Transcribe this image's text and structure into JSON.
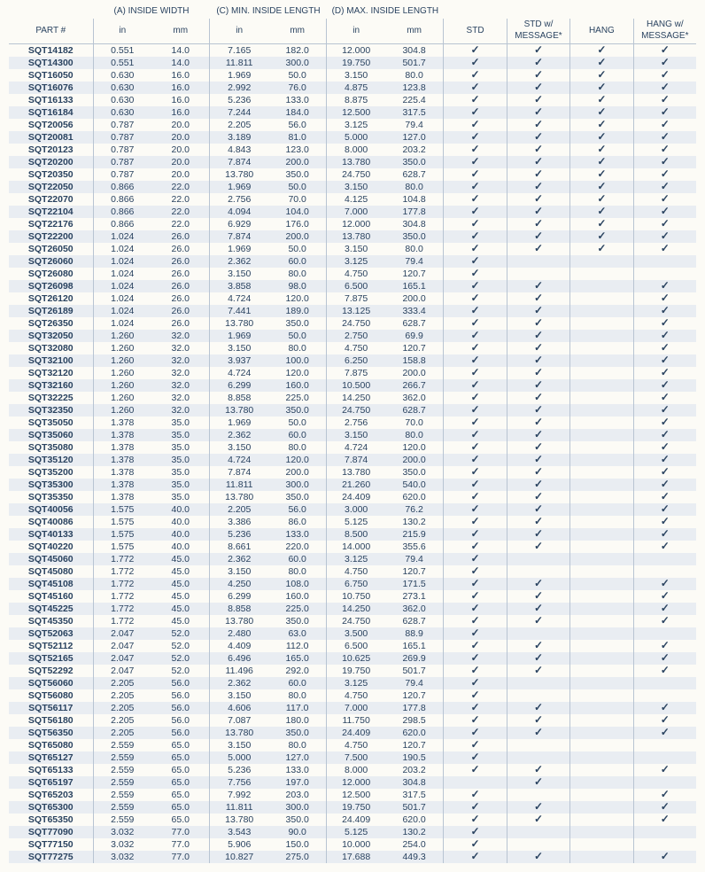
{
  "headers": {
    "groupA": "(A) INSIDE WIDTH",
    "groupC": "(C) MIN. INSIDE LENGTH",
    "groupD": "(D) MAX. INSIDE LENGTH",
    "part": "PART #",
    "in": "in",
    "mm": "mm",
    "std": "STD",
    "stdMsg": "STD w/ MESSAGE*",
    "hang": "HANG",
    "hangMsg": "HANG w/ MESSAGE*"
  },
  "tick": "✓",
  "rows": [
    {
      "p": "SQT14182",
      "ai": "0.551",
      "am": "14.0",
      "ci": "7.165",
      "cm": "182.0",
      "di": "12.000",
      "dm": "304.8",
      "s": 1,
      "sm": 1,
      "h": 1,
      "hm": 1
    },
    {
      "p": "SQT14300",
      "ai": "0.551",
      "am": "14.0",
      "ci": "11.811",
      "cm": "300.0",
      "di": "19.750",
      "dm": "501.7",
      "s": 1,
      "sm": 1,
      "h": 1,
      "hm": 1
    },
    {
      "p": "SQT16050",
      "ai": "0.630",
      "am": "16.0",
      "ci": "1.969",
      "cm": "50.0",
      "di": "3.150",
      "dm": "80.0",
      "s": 1,
      "sm": 1,
      "h": 1,
      "hm": 1
    },
    {
      "p": "SQT16076",
      "ai": "0.630",
      "am": "16.0",
      "ci": "2.992",
      "cm": "76.0",
      "di": "4.875",
      "dm": "123.8",
      "s": 1,
      "sm": 1,
      "h": 1,
      "hm": 1
    },
    {
      "p": "SQT16133",
      "ai": "0.630",
      "am": "16.0",
      "ci": "5.236",
      "cm": "133.0",
      "di": "8.875",
      "dm": "225.4",
      "s": 1,
      "sm": 1,
      "h": 1,
      "hm": 1
    },
    {
      "p": "SQT16184",
      "ai": "0.630",
      "am": "16.0",
      "ci": "7.244",
      "cm": "184.0",
      "di": "12.500",
      "dm": "317.5",
      "s": 1,
      "sm": 1,
      "h": 1,
      "hm": 1
    },
    {
      "p": "SQT20056",
      "ai": "0.787",
      "am": "20.0",
      "ci": "2.205",
      "cm": "56.0",
      "di": "3.125",
      "dm": "79.4",
      "s": 1,
      "sm": 1,
      "h": 1,
      "hm": 1
    },
    {
      "p": "SQT20081",
      "ai": "0.787",
      "am": "20.0",
      "ci": "3.189",
      "cm": "81.0",
      "di": "5.000",
      "dm": "127.0",
      "s": 1,
      "sm": 1,
      "h": 1,
      "hm": 1
    },
    {
      "p": "SQT20123",
      "ai": "0.787",
      "am": "20.0",
      "ci": "4.843",
      "cm": "123.0",
      "di": "8.000",
      "dm": "203.2",
      "s": 1,
      "sm": 1,
      "h": 1,
      "hm": 1
    },
    {
      "p": "SQT20200",
      "ai": "0.787",
      "am": "20.0",
      "ci": "7.874",
      "cm": "200.0",
      "di": "13.780",
      "dm": "350.0",
      "s": 1,
      "sm": 1,
      "h": 1,
      "hm": 1
    },
    {
      "p": "SQT20350",
      "ai": "0.787",
      "am": "20.0",
      "ci": "13.780",
      "cm": "350.0",
      "di": "24.750",
      "dm": "628.7",
      "s": 1,
      "sm": 1,
      "h": 1,
      "hm": 1
    },
    {
      "p": "SQT22050",
      "ai": "0.866",
      "am": "22.0",
      "ci": "1.969",
      "cm": "50.0",
      "di": "3.150",
      "dm": "80.0",
      "s": 1,
      "sm": 1,
      "h": 1,
      "hm": 1
    },
    {
      "p": "SQT22070",
      "ai": "0.866",
      "am": "22.0",
      "ci": "2.756",
      "cm": "70.0",
      "di": "4.125",
      "dm": "104.8",
      "s": 1,
      "sm": 1,
      "h": 1,
      "hm": 1
    },
    {
      "p": "SQT22104",
      "ai": "0.866",
      "am": "22.0",
      "ci": "4.094",
      "cm": "104.0",
      "di": "7.000",
      "dm": "177.8",
      "s": 1,
      "sm": 1,
      "h": 1,
      "hm": 1
    },
    {
      "p": "SQT22176",
      "ai": "0.866",
      "am": "22.0",
      "ci": "6.929",
      "cm": "176.0",
      "di": "12.000",
      "dm": "304.8",
      "s": 1,
      "sm": 1,
      "h": 1,
      "hm": 1
    },
    {
      "p": "SQT22200",
      "ai": "1.024",
      "am": "26.0",
      "ci": "7.874",
      "cm": "200.0",
      "di": "13.780",
      "dm": "350.0",
      "s": 1,
      "sm": 1,
      "h": 1,
      "hm": 1
    },
    {
      "p": "SQT26050",
      "ai": "1.024",
      "am": "26.0",
      "ci": "1.969",
      "cm": "50.0",
      "di": "3.150",
      "dm": "80.0",
      "s": 1,
      "sm": 1,
      "h": 1,
      "hm": 1
    },
    {
      "p": "SQT26060",
      "ai": "1.024",
      "am": "26.0",
      "ci": "2.362",
      "cm": "60.0",
      "di": "3.125",
      "dm": "79.4",
      "s": 1,
      "sm": 0,
      "h": 0,
      "hm": 0
    },
    {
      "p": "SQT26080",
      "ai": "1.024",
      "am": "26.0",
      "ci": "3.150",
      "cm": "80.0",
      "di": "4.750",
      "dm": "120.7",
      "s": 1,
      "sm": 0,
      "h": 0,
      "hm": 0
    },
    {
      "p": "SQT26098",
      "ai": "1.024",
      "am": "26.0",
      "ci": "3.858",
      "cm": "98.0",
      "di": "6.500",
      "dm": "165.1",
      "s": 1,
      "sm": 1,
      "h": 0,
      "hm": 1
    },
    {
      "p": "SQT26120",
      "ai": "1.024",
      "am": "26.0",
      "ci": "4.724",
      "cm": "120.0",
      "di": "7.875",
      "dm": "200.0",
      "s": 1,
      "sm": 1,
      "h": 0,
      "hm": 1
    },
    {
      "p": "SQT26189",
      "ai": "1.024",
      "am": "26.0",
      "ci": "7.441",
      "cm": "189.0",
      "di": "13.125",
      "dm": "333.4",
      "s": 1,
      "sm": 1,
      "h": 0,
      "hm": 1
    },
    {
      "p": "SQT26350",
      "ai": "1.024",
      "am": "26.0",
      "ci": "13.780",
      "cm": "350.0",
      "di": "24.750",
      "dm": "628.7",
      "s": 1,
      "sm": 1,
      "h": 0,
      "hm": 1
    },
    {
      "p": "SQT32050",
      "ai": "1.260",
      "am": "32.0",
      "ci": "1.969",
      "cm": "50.0",
      "di": "2.750",
      "dm": "69.9",
      "s": 1,
      "sm": 1,
      "h": 0,
      "hm": 1
    },
    {
      "p": "SQT32080",
      "ai": "1.260",
      "am": "32.0",
      "ci": "3.150",
      "cm": "80.0",
      "di": "4.750",
      "dm": "120.7",
      "s": 1,
      "sm": 1,
      "h": 0,
      "hm": 1
    },
    {
      "p": "SQT32100",
      "ai": "1.260",
      "am": "32.0",
      "ci": "3.937",
      "cm": "100.0",
      "di": "6.250",
      "dm": "158.8",
      "s": 1,
      "sm": 1,
      "h": 0,
      "hm": 1
    },
    {
      "p": "SQT32120",
      "ai": "1.260",
      "am": "32.0",
      "ci": "4.724",
      "cm": "120.0",
      "di": "7.875",
      "dm": "200.0",
      "s": 1,
      "sm": 1,
      "h": 0,
      "hm": 1
    },
    {
      "p": "SQT32160",
      "ai": "1.260",
      "am": "32.0",
      "ci": "6.299",
      "cm": "160.0",
      "di": "10.500",
      "dm": "266.7",
      "s": 1,
      "sm": 1,
      "h": 0,
      "hm": 1
    },
    {
      "p": "SQT32225",
      "ai": "1.260",
      "am": "32.0",
      "ci": "8.858",
      "cm": "225.0",
      "di": "14.250",
      "dm": "362.0",
      "s": 1,
      "sm": 1,
      "h": 0,
      "hm": 1
    },
    {
      "p": "SQT32350",
      "ai": "1.260",
      "am": "32.0",
      "ci": "13.780",
      "cm": "350.0",
      "di": "24.750",
      "dm": "628.7",
      "s": 1,
      "sm": 1,
      "h": 0,
      "hm": 1
    },
    {
      "p": "SQT35050",
      "ai": "1.378",
      "am": "35.0",
      "ci": "1.969",
      "cm": "50.0",
      "di": "2.756",
      "dm": "70.0",
      "s": 1,
      "sm": 1,
      "h": 0,
      "hm": 1
    },
    {
      "p": "SQT35060",
      "ai": "1.378",
      "am": "35.0",
      "ci": "2.362",
      "cm": "60.0",
      "di": "3.150",
      "dm": "80.0",
      "s": 1,
      "sm": 1,
      "h": 0,
      "hm": 1
    },
    {
      "p": "SQT35080",
      "ai": "1.378",
      "am": "35.0",
      "ci": "3.150",
      "cm": "80.0",
      "di": "4.724",
      "dm": "120.0",
      "s": 1,
      "sm": 1,
      "h": 0,
      "hm": 1
    },
    {
      "p": "SQT35120",
      "ai": "1.378",
      "am": "35.0",
      "ci": "4.724",
      "cm": "120.0",
      "di": "7.874",
      "dm": "200.0",
      "s": 1,
      "sm": 1,
      "h": 0,
      "hm": 1
    },
    {
      "p": "SQT35200",
      "ai": "1.378",
      "am": "35.0",
      "ci": "7.874",
      "cm": "200.0",
      "di": "13.780",
      "dm": "350.0",
      "s": 1,
      "sm": 1,
      "h": 0,
      "hm": 1
    },
    {
      "p": "SQT35300",
      "ai": "1.378",
      "am": "35.0",
      "ci": "11.811",
      "cm": "300.0",
      "di": "21.260",
      "dm": "540.0",
      "s": 1,
      "sm": 1,
      "h": 0,
      "hm": 1
    },
    {
      "p": "SQT35350",
      "ai": "1.378",
      "am": "35.0",
      "ci": "13.780",
      "cm": "350.0",
      "di": "24.409",
      "dm": "620.0",
      "s": 1,
      "sm": 1,
      "h": 0,
      "hm": 1
    },
    {
      "p": "SQT40056",
      "ai": "1.575",
      "am": "40.0",
      "ci": "2.205",
      "cm": "56.0",
      "di": "3.000",
      "dm": "76.2",
      "s": 1,
      "sm": 1,
      "h": 0,
      "hm": 1
    },
    {
      "p": "SQT40086",
      "ai": "1.575",
      "am": "40.0",
      "ci": "3.386",
      "cm": "86.0",
      "di": "5.125",
      "dm": "130.2",
      "s": 1,
      "sm": 1,
      "h": 0,
      "hm": 1
    },
    {
      "p": "SQT40133",
      "ai": "1.575",
      "am": "40.0",
      "ci": "5.236",
      "cm": "133.0",
      "di": "8.500",
      "dm": "215.9",
      "s": 1,
      "sm": 1,
      "h": 0,
      "hm": 1
    },
    {
      "p": "SQT40220",
      "ai": "1.575",
      "am": "40.0",
      "ci": "8.661",
      "cm": "220.0",
      "di": "14.000",
      "dm": "355.6",
      "s": 1,
      "sm": 1,
      "h": 0,
      "hm": 1
    },
    {
      "p": "SQT45060",
      "ai": "1.772",
      "am": "45.0",
      "ci": "2.362",
      "cm": "60.0",
      "di": "3.125",
      "dm": "79.4",
      "s": 1,
      "sm": 0,
      "h": 0,
      "hm": 0
    },
    {
      "p": "SQT45080",
      "ai": "1.772",
      "am": "45.0",
      "ci": "3.150",
      "cm": "80.0",
      "di": "4.750",
      "dm": "120.7",
      "s": 1,
      "sm": 0,
      "h": 0,
      "hm": 0
    },
    {
      "p": "SQT45108",
      "ai": "1.772",
      "am": "45.0",
      "ci": "4.250",
      "cm": "108.0",
      "di": "6.750",
      "dm": "171.5",
      "s": 1,
      "sm": 1,
      "h": 0,
      "hm": 1
    },
    {
      "p": "SQT45160",
      "ai": "1.772",
      "am": "45.0",
      "ci": "6.299",
      "cm": "160.0",
      "di": "10.750",
      "dm": "273.1",
      "s": 1,
      "sm": 1,
      "h": 0,
      "hm": 1
    },
    {
      "p": "SQT45225",
      "ai": "1.772",
      "am": "45.0",
      "ci": "8.858",
      "cm": "225.0",
      "di": "14.250",
      "dm": "362.0",
      "s": 1,
      "sm": 1,
      "h": 0,
      "hm": 1
    },
    {
      "p": "SQT45350",
      "ai": "1.772",
      "am": "45.0",
      "ci": "13.780",
      "cm": "350.0",
      "di": "24.750",
      "dm": "628.7",
      "s": 1,
      "sm": 1,
      "h": 0,
      "hm": 1
    },
    {
      "p": "SQT52063",
      "ai": "2.047",
      "am": "52.0",
      "ci": "2.480",
      "cm": "63.0",
      "di": "3.500",
      "dm": "88.9",
      "s": 1,
      "sm": 0,
      "h": 0,
      "hm": 0
    },
    {
      "p": "SQT52112",
      "ai": "2.047",
      "am": "52.0",
      "ci": "4.409",
      "cm": "112.0",
      "di": "6.500",
      "dm": "165.1",
      "s": 1,
      "sm": 1,
      "h": 0,
      "hm": 1
    },
    {
      "p": "SQT52165",
      "ai": "2.047",
      "am": "52.0",
      "ci": "6.496",
      "cm": "165.0",
      "di": "10.625",
      "dm": "269.9",
      "s": 1,
      "sm": 1,
      "h": 0,
      "hm": 1
    },
    {
      "p": "SQT52292",
      "ai": "2.047",
      "am": "52.0",
      "ci": "11.496",
      "cm": "292.0",
      "di": "19.750",
      "dm": "501.7",
      "s": 1,
      "sm": 1,
      "h": 0,
      "hm": 1
    },
    {
      "p": "SQT56060",
      "ai": "2.205",
      "am": "56.0",
      "ci": "2.362",
      "cm": "60.0",
      "di": "3.125",
      "dm": "79.4",
      "s": 1,
      "sm": 0,
      "h": 0,
      "hm": 0
    },
    {
      "p": "SQT56080",
      "ai": "2.205",
      "am": "56.0",
      "ci": "3.150",
      "cm": "80.0",
      "di": "4.750",
      "dm": "120.7",
      "s": 1,
      "sm": 0,
      "h": 0,
      "hm": 0
    },
    {
      "p": "SQT56117",
      "ai": "2.205",
      "am": "56.0",
      "ci": "4.606",
      "cm": "117.0",
      "di": "7.000",
      "dm": "177.8",
      "s": 1,
      "sm": 1,
      "h": 0,
      "hm": 1
    },
    {
      "p": "SQT56180",
      "ai": "2.205",
      "am": "56.0",
      "ci": "7.087",
      "cm": "180.0",
      "di": "11.750",
      "dm": "298.5",
      "s": 1,
      "sm": 1,
      "h": 0,
      "hm": 1
    },
    {
      "p": "SQT56350",
      "ai": "2.205",
      "am": "56.0",
      "ci": "13.780",
      "cm": "350.0",
      "di": "24.409",
      "dm": "620.0",
      "s": 1,
      "sm": 1,
      "h": 0,
      "hm": 1
    },
    {
      "p": "SQT65080",
      "ai": "2.559",
      "am": "65.0",
      "ci": "3.150",
      "cm": "80.0",
      "di": "4.750",
      "dm": "120.7",
      "s": 1,
      "sm": 0,
      "h": 0,
      "hm": 0
    },
    {
      "p": "SQT65127",
      "ai": "2.559",
      "am": "65.0",
      "ci": "5.000",
      "cm": "127.0",
      "di": "7.500",
      "dm": "190.5",
      "s": 1,
      "sm": 0,
      "h": 0,
      "hm": 0
    },
    {
      "p": "SQT65133",
      "ai": "2.559",
      "am": "65.0",
      "ci": "5.236",
      "cm": "133.0",
      "di": "8.000",
      "dm": "203.2",
      "s": 1,
      "sm": 1,
      "h": 0,
      "hm": 1
    },
    {
      "p": "SQT65197",
      "ai": "2.559",
      "am": "65.0",
      "ci": "7.756",
      "cm": "197.0",
      "di": "12.000",
      "dm": "304.8",
      "s": 0,
      "sm": 1,
      "h": 0,
      "hm": 0
    },
    {
      "p": "SQT65203",
      "ai": "2.559",
      "am": "65.0",
      "ci": "7.992",
      "cm": "203.0",
      "di": "12.500",
      "dm": "317.5",
      "s": 1,
      "sm": 0,
      "h": 0,
      "hm": 1
    },
    {
      "p": "SQT65300",
      "ai": "2.559",
      "am": "65.0",
      "ci": "11.811",
      "cm": "300.0",
      "di": "19.750",
      "dm": "501.7",
      "s": 1,
      "sm": 1,
      "h": 0,
      "hm": 1
    },
    {
      "p": "SQT65350",
      "ai": "2.559",
      "am": "65.0",
      "ci": "13.780",
      "cm": "350.0",
      "di": "24.409",
      "dm": "620.0",
      "s": 1,
      "sm": 1,
      "h": 0,
      "hm": 1
    },
    {
      "p": "SQT77090",
      "ai": "3.032",
      "am": "77.0",
      "ci": "3.543",
      "cm": "90.0",
      "di": "5.125",
      "dm": "130.2",
      "s": 1,
      "sm": 0,
      "h": 0,
      "hm": 0
    },
    {
      "p": "SQT77150",
      "ai": "3.032",
      "am": "77.0",
      "ci": "5.906",
      "cm": "150.0",
      "di": "10.000",
      "dm": "254.0",
      "s": 1,
      "sm": 0,
      "h": 0,
      "hm": 0
    },
    {
      "p": "SQT77275",
      "ai": "3.032",
      "am": "77.0",
      "ci": "10.827",
      "cm": "275.0",
      "di": "17.688",
      "dm": "449.3",
      "s": 1,
      "sm": 1,
      "h": 0,
      "hm": 1
    }
  ]
}
